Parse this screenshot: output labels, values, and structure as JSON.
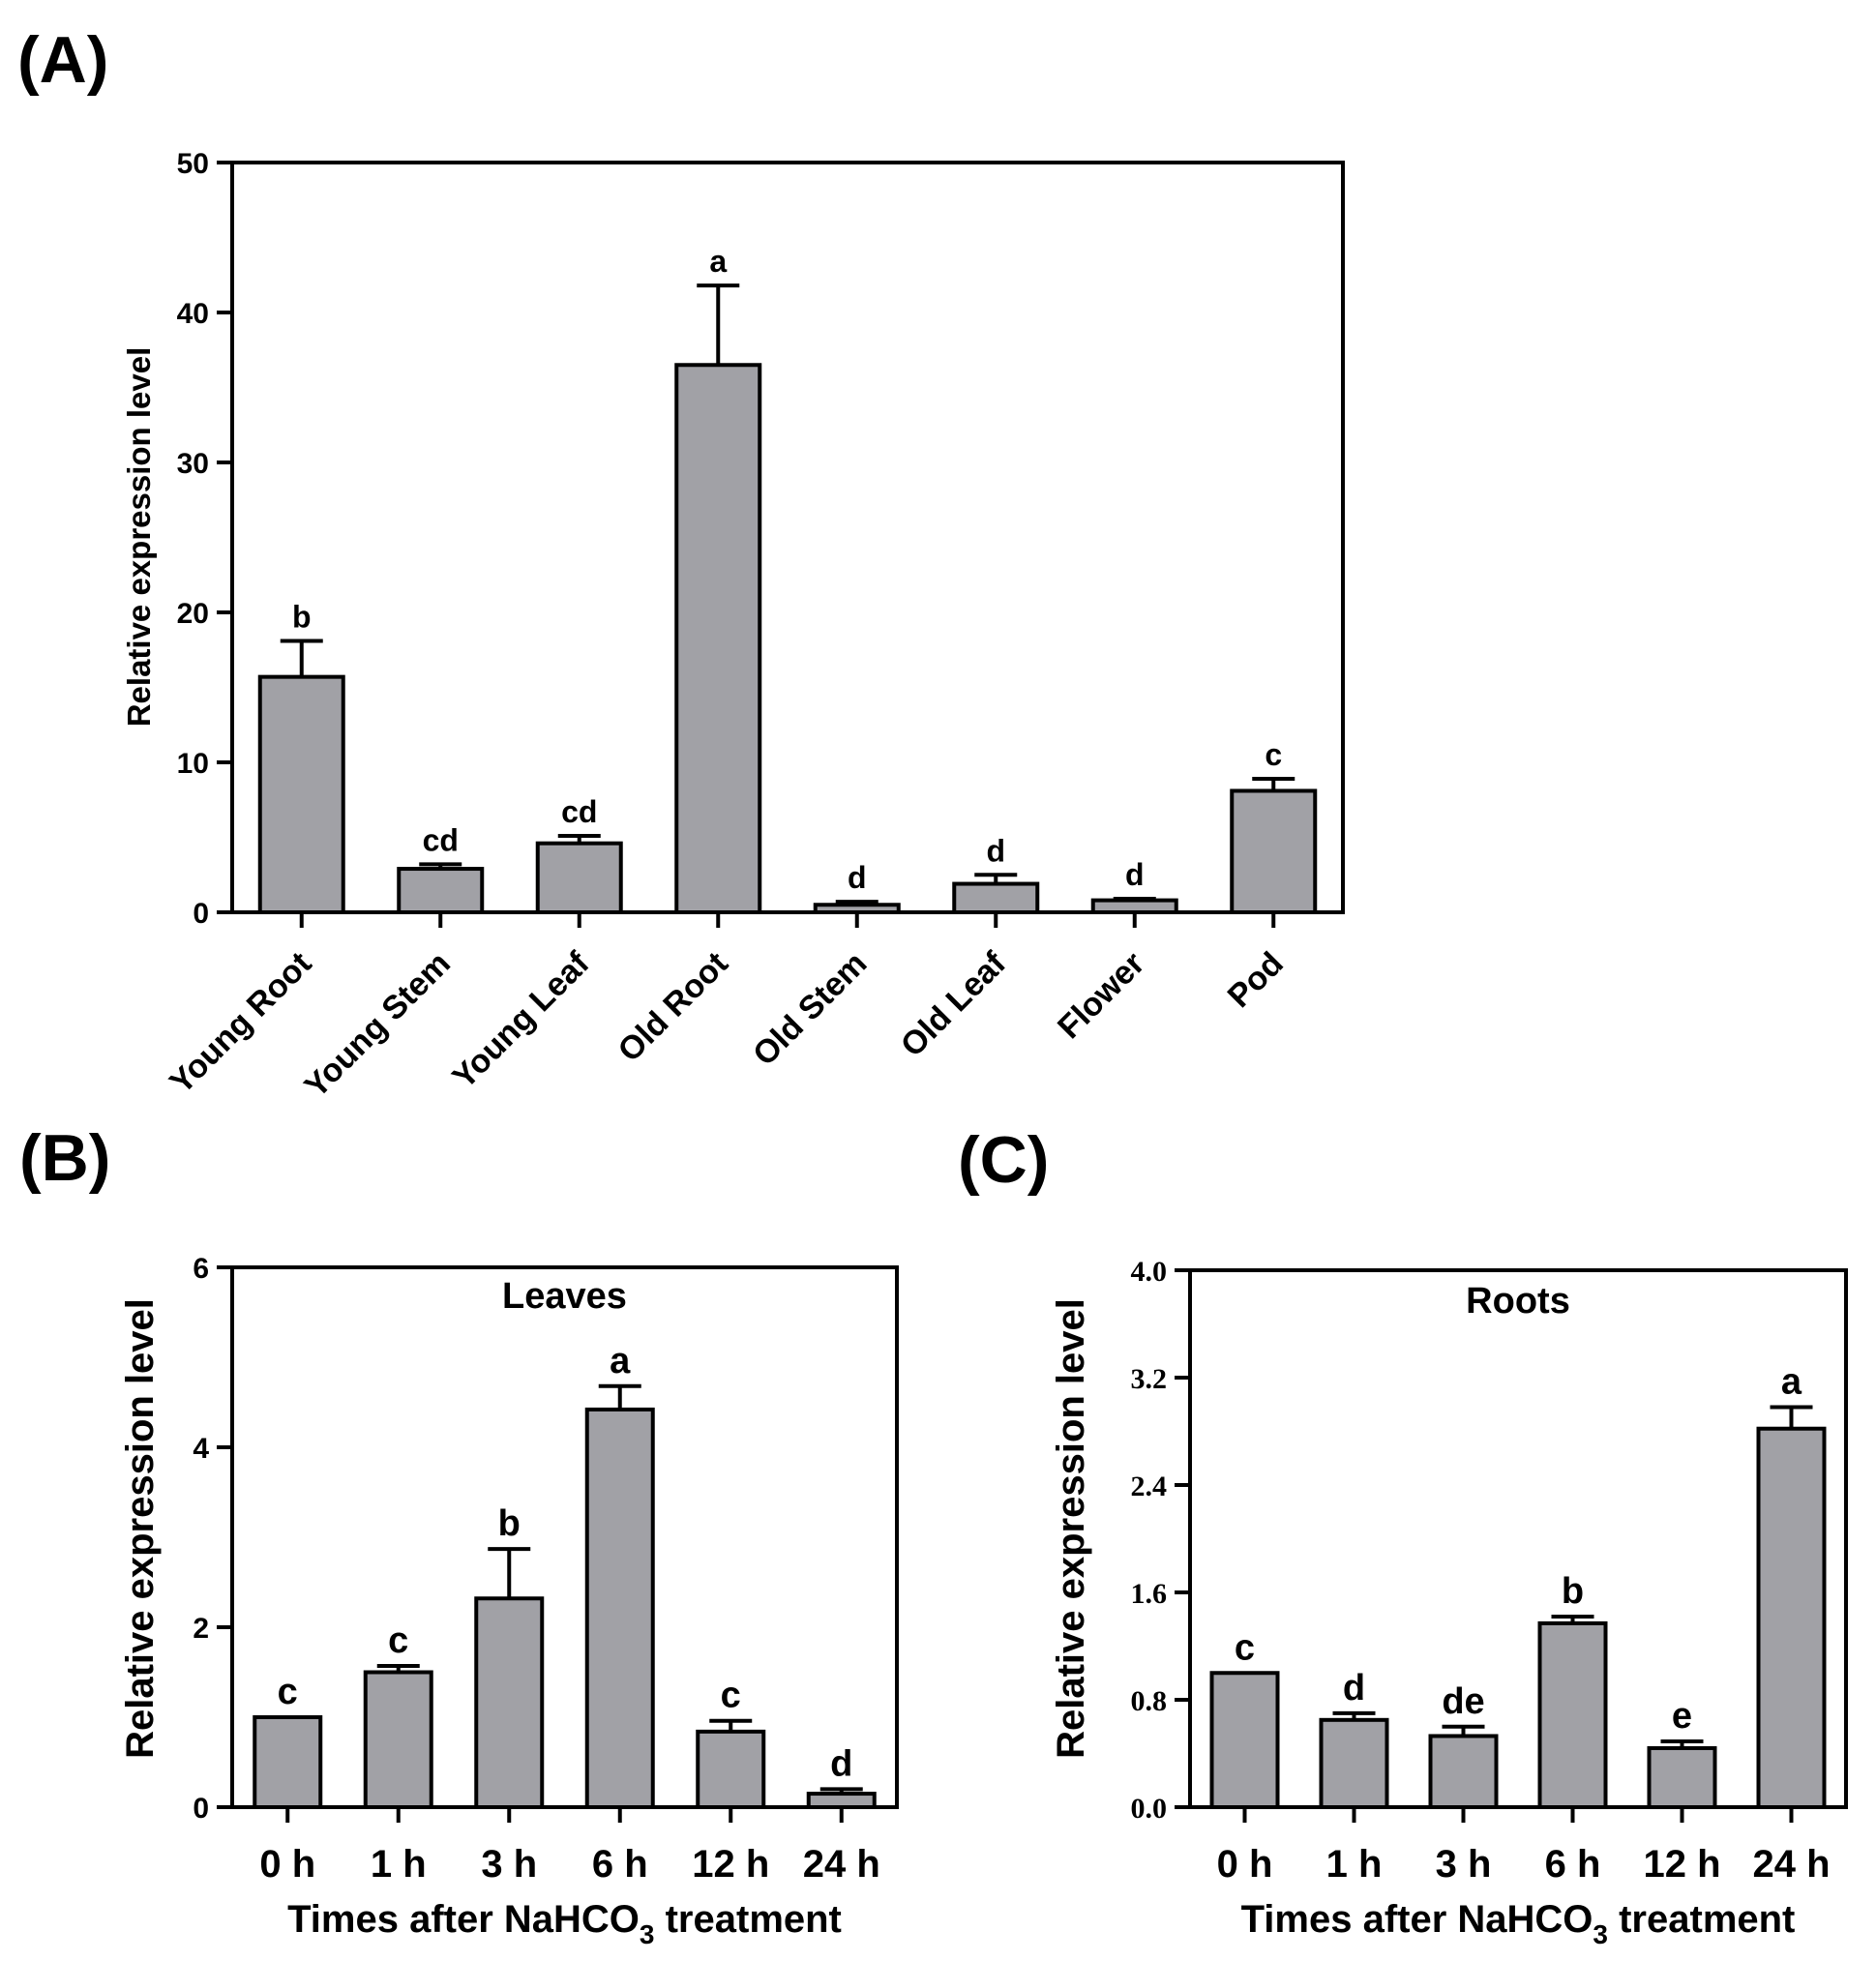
{
  "chart_data": [
    {
      "panel": "(A)",
      "type": "bar",
      "title": "",
      "ylabel": "Relative expression level",
      "xlabel": "",
      "ylim": [
        0,
        50
      ],
      "yticks": [
        "0",
        "10",
        "20",
        "30",
        "40",
        "50"
      ],
      "categories": [
        "Young Root",
        "Young Stem",
        "Young Leaf",
        "Old Root",
        "Old Stem",
        "Old Leaf",
        "Flower",
        "Pod"
      ],
      "values": [
        15.7,
        2.9,
        4.6,
        36.5,
        0.5,
        1.9,
        0.8,
        8.1
      ],
      "errors": [
        2.4,
        0.3,
        0.5,
        5.3,
        0.2,
        0.6,
        0.1,
        0.8
      ],
      "significance": [
        "b",
        "cd",
        "cd",
        "a",
        "d",
        "d",
        "d",
        "c"
      ]
    },
    {
      "panel": "(B)",
      "type": "bar",
      "title": "Leaves",
      "ylabel": "Relative expression level",
      "xlabel_prefix": "Times after NaHCO",
      "xlabel_sub": "3",
      "xlabel_suffix": " treatment",
      "ylim": [
        0,
        6
      ],
      "yticks": [
        "0",
        "2",
        "4",
        "6"
      ],
      "categories": [
        "0 h",
        "1 h",
        "3 h",
        "6 h",
        "12 h",
        "24 h"
      ],
      "values": [
        1.0,
        1.5,
        2.32,
        4.42,
        0.84,
        0.15
      ],
      "errors": [
        0.0,
        0.07,
        0.55,
        0.26,
        0.12,
        0.05
      ],
      "significance": [
        "c",
        "c",
        "b",
        "a",
        "c",
        "d"
      ]
    },
    {
      "panel": "(C)",
      "type": "bar",
      "title": "Roots",
      "ylabel": "Relative expression level",
      "xlabel_prefix": "Times after NaHCO",
      "xlabel_sub": "3",
      "xlabel_suffix": " treatment",
      "ylim": [
        0,
        4
      ],
      "yticks": [
        "0.0",
        "0.8",
        "1.6",
        "2.4",
        "3.2",
        "4.0"
      ],
      "categories": [
        "0 h",
        "1 h",
        "3 h",
        "6 h",
        "12 h",
        "24 h"
      ],
      "values": [
        1.0,
        0.65,
        0.53,
        1.37,
        0.44,
        2.82
      ],
      "errors": [
        0.0,
        0.05,
        0.07,
        0.05,
        0.05,
        0.16
      ],
      "significance": [
        "c",
        "d",
        "de",
        "b",
        "e",
        "a"
      ]
    }
  ]
}
